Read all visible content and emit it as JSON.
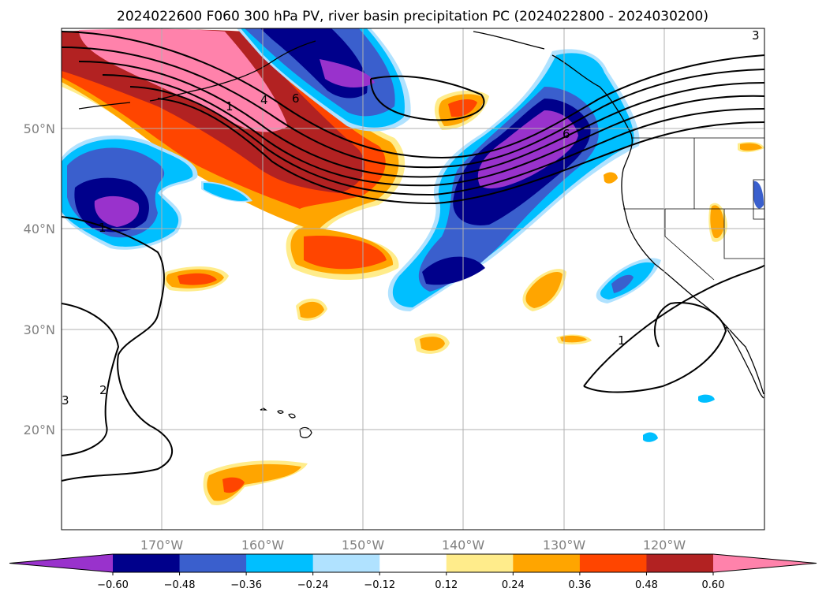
{
  "title": "2024022600 F060 300 hPa PV, river basin precipitation PC (2024022800 - 2024030200)",
  "map": {
    "lon_ticks": [
      "170°W",
      "160°W",
      "150°W",
      "140°W",
      "130°W",
      "120°W"
    ],
    "lat_ticks": [
      "50°N",
      "40°N",
      "30°N",
      "20°N"
    ],
    "gridlines": true
  },
  "contour_labels": [
    "1",
    "4",
    "6",
    "1",
    "2",
    "3",
    "1",
    "3",
    "6"
  ],
  "colorbar": {
    "ticks": [
      "−0.60",
      "−0.48",
      "−0.36",
      "−0.24",
      "−0.12",
      "0.12",
      "0.24",
      "0.36",
      "0.48",
      "0.60"
    ],
    "colors": [
      "#9932cc",
      "#00008b",
      "#3a5fcd",
      "#00bfff",
      "#b0e2ff",
      "#ffffff",
      "#ffec8b",
      "#ffa500",
      "#ff4500",
      "#b22222",
      "#ff82ab"
    ],
    "extend": "both"
  }
}
